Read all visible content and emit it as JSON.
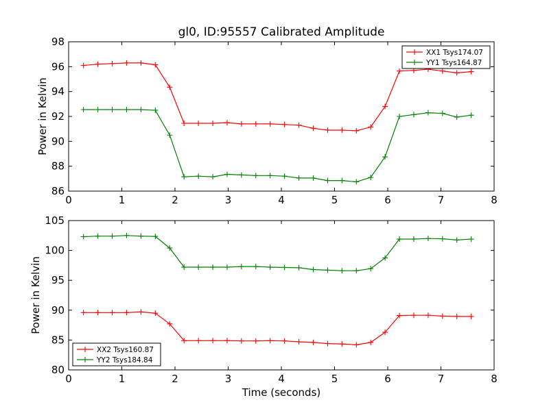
{
  "chart_data": [
    {
      "type": "line",
      "title": "gl0, ID:95557 Calibrated Amplitude",
      "xlabel": "",
      "ylabel": "Power in Kelvin",
      "xlim": [
        0,
        8
      ],
      "ylim": [
        86,
        98
      ],
      "xticks": [
        0,
        1,
        2,
        3,
        4,
        5,
        6,
        7,
        8
      ],
      "yticks": [
        86,
        88,
        90,
        92,
        94,
        96,
        98
      ],
      "grid": false,
      "legend_position": "top-right",
      "x": [
        0.28,
        0.55,
        0.82,
        1.09,
        1.36,
        1.63,
        1.9,
        2.17,
        2.44,
        2.71,
        2.98,
        3.25,
        3.52,
        3.79,
        4.06,
        4.33,
        4.6,
        4.87,
        5.14,
        5.41,
        5.68,
        5.95,
        6.22,
        6.49,
        6.76,
        7.03,
        7.3,
        7.57
      ],
      "series": [
        {
          "name": "XX1 Tsys174.07",
          "color": "#ff0000",
          "values": [
            96.1,
            96.2,
            96.25,
            96.3,
            96.3,
            96.15,
            94.35,
            91.45,
            91.45,
            91.45,
            91.5,
            91.4,
            91.4,
            91.4,
            91.35,
            91.3,
            91.05,
            90.9,
            90.9,
            90.85,
            91.15,
            92.8,
            95.65,
            95.7,
            95.8,
            95.65,
            95.5,
            95.6
          ]
        },
        {
          "name": "YY1 Tsys164.87",
          "color": "#008000",
          "values": [
            92.55,
            92.55,
            92.55,
            92.55,
            92.55,
            92.5,
            90.5,
            87.15,
            87.2,
            87.15,
            87.35,
            87.3,
            87.25,
            87.25,
            87.2,
            87.05,
            87.05,
            86.85,
            86.85,
            86.75,
            87.1,
            88.75,
            92.0,
            92.15,
            92.3,
            92.25,
            91.95,
            92.1
          ]
        }
      ]
    },
    {
      "type": "line",
      "title": "",
      "xlabel": "Time (seconds)",
      "ylabel": "Power in Kelvin",
      "xlim": [
        0,
        8
      ],
      "ylim": [
        80,
        105
      ],
      "xticks": [
        0,
        1,
        2,
        3,
        4,
        5,
        6,
        7,
        8
      ],
      "yticks": [
        80,
        85,
        90,
        95,
        100,
        105
      ],
      "grid": false,
      "legend_position": "bottom-left",
      "x": [
        0.28,
        0.55,
        0.82,
        1.09,
        1.36,
        1.63,
        1.9,
        2.17,
        2.44,
        2.71,
        2.98,
        3.25,
        3.52,
        3.79,
        4.06,
        4.33,
        4.6,
        4.87,
        5.14,
        5.41,
        5.68,
        5.95,
        6.22,
        6.49,
        6.76,
        7.03,
        7.3,
        7.57
      ],
      "series": [
        {
          "name": "XX2 Tsys160.87",
          "color": "#ff0000",
          "values": [
            89.6,
            89.6,
            89.6,
            89.6,
            89.7,
            89.5,
            87.7,
            84.9,
            84.9,
            84.9,
            84.9,
            84.85,
            84.85,
            84.9,
            84.85,
            84.7,
            84.6,
            84.4,
            84.35,
            84.2,
            84.6,
            86.3,
            89.1,
            89.15,
            89.15,
            89.0,
            88.95,
            88.95
          ]
        },
        {
          "name": "YY2 Tsys184.84",
          "color": "#008000",
          "values": [
            102.3,
            102.4,
            102.4,
            102.5,
            102.4,
            102.35,
            100.4,
            97.2,
            97.2,
            97.2,
            97.2,
            97.3,
            97.3,
            97.2,
            97.15,
            97.1,
            96.8,
            96.7,
            96.6,
            96.6,
            96.95,
            98.75,
            101.9,
            101.9,
            102.0,
            101.95,
            101.75,
            101.9
          ]
        }
      ]
    }
  ]
}
